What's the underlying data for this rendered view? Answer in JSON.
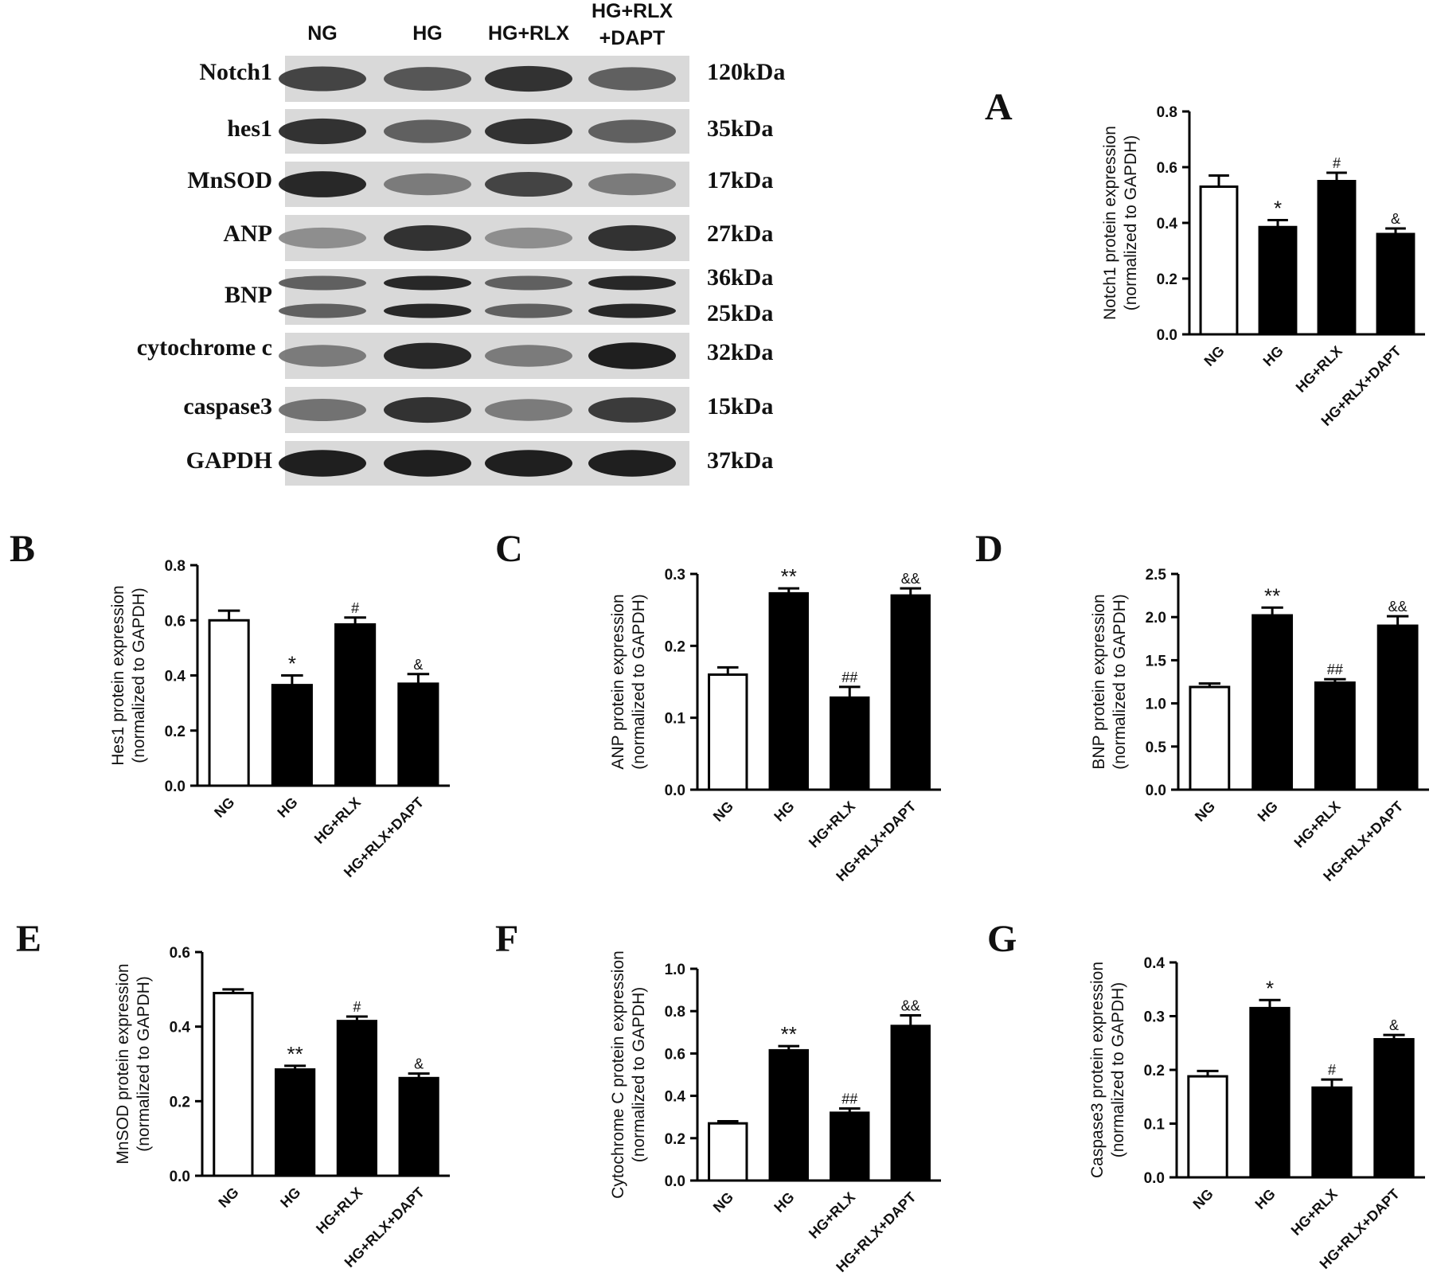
{
  "blot": {
    "lanes": [
      "NG",
      "HG",
      "HG+RLX",
      "HG+RLX\n+DAPT"
    ],
    "rows": [
      {
        "protein": "Notch1",
        "kda": [
          "120kDa"
        ],
        "intensity": [
          0.75,
          0.65,
          0.85,
          0.6
        ]
      },
      {
        "protein": "hes1",
        "kda": [
          "35kDa"
        ],
        "intensity": [
          0.85,
          0.6,
          0.85,
          0.6
        ]
      },
      {
        "protein": "MnSOD",
        "kda": [
          "17kDa"
        ],
        "intensity": [
          0.9,
          0.45,
          0.75,
          0.45
        ]
      },
      {
        "protein": "ANP",
        "kda": [
          "27kDa"
        ],
        "intensity": [
          0.35,
          0.85,
          0.35,
          0.85
        ]
      },
      {
        "protein": "BNP",
        "kda": [
          "36kDa",
          "25kDa"
        ],
        "intensity": [
          0.6,
          0.9,
          0.6,
          0.9
        ]
      },
      {
        "protein": "cytochrome c",
        "kda": [
          "32kDa"
        ],
        "intensity": [
          0.45,
          0.9,
          0.45,
          0.95
        ]
      },
      {
        "protein": "caspase3",
        "kda": [
          "15kDa"
        ],
        "intensity": [
          0.5,
          0.85,
          0.45,
          0.8
        ]
      },
      {
        "protein": "GAPDH",
        "kda": [
          "37kDa"
        ],
        "intensity": [
          0.95,
          0.95,
          0.95,
          0.95
        ]
      }
    ]
  },
  "chart_data": [
    {
      "panel": "A",
      "type": "bar",
      "categories": [
        "NG",
        "HG",
        "HG+RLX",
        "HG+RLX+DAPT"
      ],
      "values": [
        0.53,
        0.385,
        0.55,
        0.36
      ],
      "errors": [
        0.04,
        0.025,
        0.03,
        0.02
      ],
      "annotations": [
        "",
        "*",
        "#",
        "&"
      ],
      "fills": [
        "#ffffff",
        "#000000",
        "#000000",
        "#000000"
      ],
      "ylabel": [
        "Notch1 protein expression",
        "(normalized to GAPDH)"
      ],
      "ylim": [
        0,
        0.8
      ],
      "yticks": [
        "0.0",
        "0.2",
        "0.4",
        "0.6",
        "0.8"
      ]
    },
    {
      "panel": "B",
      "type": "bar",
      "categories": [
        "NG",
        "HG",
        "HG+RLX",
        "HG+RLX+DAPT"
      ],
      "values": [
        0.6,
        0.365,
        0.585,
        0.37
      ],
      "errors": [
        0.035,
        0.035,
        0.025,
        0.035
      ],
      "annotations": [
        "",
        "*",
        "#",
        "&"
      ],
      "fills": [
        "#ffffff",
        "#000000",
        "#000000",
        "#000000"
      ],
      "ylabel": [
        "Hes1 protein expression",
        "(normalized to GAPDH)"
      ],
      "ylim": [
        0,
        0.8
      ],
      "yticks": [
        "0.0",
        "0.2",
        "0.4",
        "0.6",
        "0.8"
      ]
    },
    {
      "panel": "C",
      "type": "bar",
      "categories": [
        "NG",
        "HG",
        "HG+RLX",
        "HG+RLX+DAPT"
      ],
      "values": [
        0.16,
        0.273,
        0.128,
        0.27
      ],
      "errors": [
        0.01,
        0.007,
        0.015,
        0.01
      ],
      "annotations": [
        "",
        "**",
        "##",
        "&&"
      ],
      "fills": [
        "#ffffff",
        "#000000",
        "#000000",
        "#000000"
      ],
      "ylabel": [
        "ANP protein expression",
        "(normalized to GAPDH)"
      ],
      "ylim": [
        0,
        0.3
      ],
      "yticks": [
        "0.0",
        "0.1",
        "0.2",
        "0.3"
      ]
    },
    {
      "panel": "D",
      "type": "bar",
      "categories": [
        "NG",
        "HG",
        "HG+RLX",
        "HG+RLX+DAPT"
      ],
      "values": [
        1.19,
        2.02,
        1.24,
        1.9
      ],
      "errors": [
        0.04,
        0.09,
        0.04,
        0.11
      ],
      "annotations": [
        "",
        "**",
        "##",
        "&&"
      ],
      "fills": [
        "#ffffff",
        "#000000",
        "#000000",
        "#000000"
      ],
      "ylabel": [
        "BNP protein expression",
        "(normalized to GAPDH)"
      ],
      "ylim": [
        0,
        2.5
      ],
      "yticks": [
        "0.0",
        "0.5",
        "1.0",
        "1.5",
        "2.0",
        "2.5"
      ]
    },
    {
      "panel": "E",
      "type": "bar",
      "categories": [
        "NG",
        "HG",
        "HG+RLX",
        "HG+RLX+DAPT"
      ],
      "values": [
        0.49,
        0.285,
        0.415,
        0.262
      ],
      "errors": [
        0.01,
        0.01,
        0.012,
        0.012
      ],
      "annotations": [
        "",
        "**",
        "#",
        "&"
      ],
      "fills": [
        "#ffffff",
        "#000000",
        "#000000",
        "#000000"
      ],
      "ylabel": [
        "MnSOD protein expression",
        "(normalized to GAPDH)"
      ],
      "ylim": [
        0,
        0.6
      ],
      "yticks": [
        "0.0",
        "0.2",
        "0.4",
        "0.6"
      ]
    },
    {
      "panel": "F",
      "type": "bar",
      "categories": [
        "NG",
        "HG",
        "HG+RLX",
        "HG+RLX+DAPT"
      ],
      "values": [
        0.27,
        0.615,
        0.32,
        0.73
      ],
      "errors": [
        0.01,
        0.02,
        0.02,
        0.05
      ],
      "annotations": [
        "",
        "**",
        "##",
        "&&"
      ],
      "fills": [
        "#ffffff",
        "#000000",
        "#000000",
        "#000000"
      ],
      "ylabel": [
        "Cytochrome C protein expression",
        "(normalized to GAPDH)"
      ],
      "ylim": [
        0,
        1.0
      ],
      "yticks": [
        "0.0",
        "0.2",
        "0.4",
        "0.6",
        "0.8",
        "1.0"
      ]
    },
    {
      "panel": "G",
      "type": "bar",
      "categories": [
        "NG",
        "HG",
        "HG+RLX",
        "HG+RLX+DAPT"
      ],
      "values": [
        0.188,
        0.315,
        0.167,
        0.257
      ],
      "errors": [
        0.01,
        0.015,
        0.015,
        0.008
      ],
      "annotations": [
        "",
        "*",
        "#",
        "&"
      ],
      "fills": [
        "#ffffff",
        "#000000",
        "#000000",
        "#000000"
      ],
      "ylabel": [
        "Caspase3 protein expression",
        "(normalized to GAPDH)"
      ],
      "ylim": [
        0,
        0.4
      ],
      "yticks": [
        "0.0",
        "0.1",
        "0.2",
        "0.3",
        "0.4"
      ]
    }
  ]
}
